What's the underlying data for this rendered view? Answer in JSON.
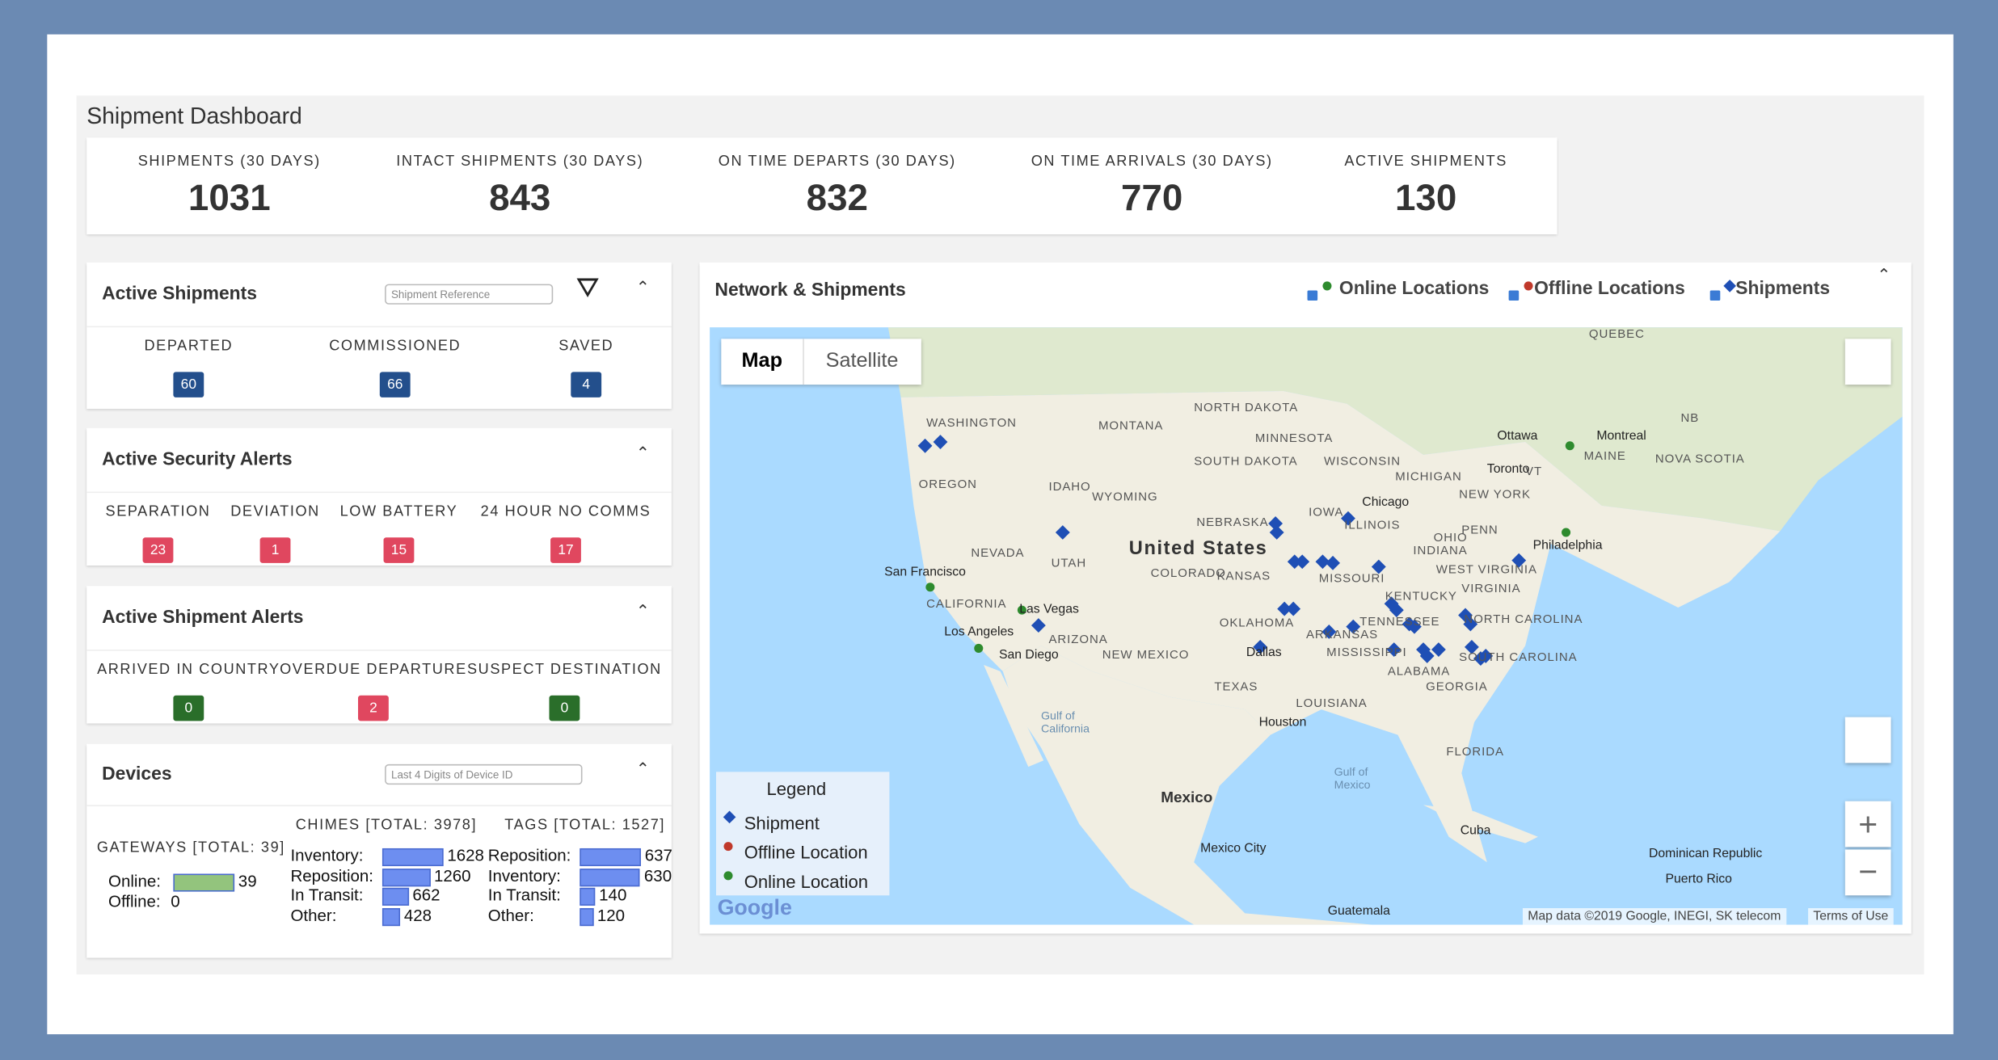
{
  "header": {
    "title": "Shipment Dashboard"
  },
  "kpis": [
    {
      "label": "SHIPMENTS (30 DAYS)",
      "value": 1031
    },
    {
      "label": "INTACT SHIPMENTS (30 DAYS)",
      "value": 843
    },
    {
      "label": "ON TIME DEPARTS (30 DAYS)",
      "value": 832
    },
    {
      "label": "ON TIME ARRIVALS (30 DAYS)",
      "value": 770
    },
    {
      "label": "ACTIVE SHIPMENTS",
      "value": 130
    }
  ],
  "active_shipments": {
    "title": "Active Shipments",
    "search_placeholder": "Shipment Reference",
    "stats": [
      {
        "label": "DEPARTED",
        "value": 60,
        "color": "#234f8c"
      },
      {
        "label": "COMMISSIONED",
        "value": 66,
        "color": "#234f8c"
      },
      {
        "label": "SAVED",
        "value": 4,
        "color": "#234f8c"
      }
    ]
  },
  "security_alerts": {
    "title": "Active Security Alerts",
    "stats": [
      {
        "label": "SEPARATION",
        "value": 23,
        "color": "#e0475f"
      },
      {
        "label": "DEVIATION",
        "value": 1,
        "color": "#e0475f"
      },
      {
        "label": "LOW BATTERY",
        "value": 15,
        "color": "#e0475f"
      },
      {
        "label": "24 HOUR NO COMMS",
        "value": 17,
        "color": "#e0475f"
      }
    ]
  },
  "shipment_alerts": {
    "title": "Active Shipment Alerts",
    "stats": [
      {
        "label": "ARRIVED IN COUNTRY",
        "value": 0,
        "color": "#2a6e2a"
      },
      {
        "label": "OVERDUE DEPARTURE",
        "value": 2,
        "color": "#e0475f"
      },
      {
        "label": "SUSPECT DESTINATION",
        "value": 0,
        "color": "#2a6e2a"
      }
    ]
  },
  "devices": {
    "title": "Devices",
    "search_placeholder": "Last 4 Digits of Device ID",
    "gateways": {
      "title": "GATEWAYS [TOTAL: 39]",
      "color": "#93c47d",
      "rows": [
        {
          "label": "Online:",
          "value": 39
        },
        {
          "label": "Offline:",
          "value": 0
        }
      ]
    },
    "chimes": {
      "title": "CHIMES [TOTAL: 3978]",
      "color": "#6d8ef0",
      "rows": [
        {
          "label": "Inventory:",
          "value": 1628
        },
        {
          "label": "Reposition:",
          "value": 1260
        },
        {
          "label": "In Transit:",
          "value": 662
        },
        {
          "label": "Other:",
          "value": 428
        }
      ]
    },
    "tags": {
      "title": "TAGS [TOTAL: 1527]",
      "color": "#6d8ef0",
      "rows": [
        {
          "label": "Reposition:",
          "value": 637
        },
        {
          "label": "Inventory:",
          "value": 630
        },
        {
          "label": "In Transit:",
          "value": 140
        },
        {
          "label": "Other:",
          "value": 120
        }
      ]
    }
  },
  "network": {
    "title": "Network & Shipments",
    "filters": [
      {
        "label": "Online Locations",
        "color": "#2e8b2e"
      },
      {
        "label": "Offline Locations",
        "color": "#c0392b"
      },
      {
        "label": "Shipments",
        "color": "#1f4fb5"
      }
    ],
    "map_buttons": [
      "Map",
      "Satellite"
    ],
    "legend": {
      "title": "Legend",
      "items": [
        {
          "label": "Shipment",
          "color": "#1f4fb5"
        },
        {
          "label": "Offline Location",
          "color": "#c0392b"
        },
        {
          "label": "Online Location",
          "color": "#2e8b2e"
        }
      ]
    },
    "google": "Google",
    "attribution": "Map data ©2019 Google, INEGI, SK telecom",
    "terms": "Terms of Use",
    "region_labels": [
      "WASHINGTON",
      "MONTANA",
      "NORTH DAKOTA",
      "MINNESOTA",
      "OREGON",
      "IDAHO",
      "SOUTH DAKOTA",
      "WYOMING",
      "WISCONSIN",
      "MICHIGAN",
      "NEBRASKA",
      "IOWA",
      "NEVADA",
      "UTAH",
      "COLORADO",
      "ILLINOIS",
      "INDIANA",
      "OHIO",
      "KANSAS",
      "MISSOURI",
      "CALIFORNIA",
      "ARIZONA",
      "OKLAHOMA",
      "ARKANSAS",
      "TENNESSEE",
      "KENTUCKY",
      "NEW MEXICO",
      "TEXAS",
      "MISSISSIPPI",
      "ALABAMA",
      "GEORGIA",
      "NORTH CAROLINA",
      "SOUTH CAROLINA",
      "FLORIDA",
      "LOUISIANA",
      "WEST VIRGINIA",
      "VIRGINIA",
      "PENN",
      "NEW YORK",
      "MAINE",
      "NOVA SCOTIA",
      "QUEBEC",
      "VT",
      "NB"
    ],
    "city_labels": [
      "Ottawa",
      "Montreal",
      "Toronto",
      "Chicago",
      "Philadelphia",
      "San Francisco",
      "Las Vegas",
      "Los Angeles",
      "San Diego",
      "Dallas",
      "Houston",
      "Mexico City",
      "Cuba",
      "Dominican Republic",
      "Puerto Rico",
      "Guatemala",
      "Gulf of Mexico",
      "Gulf of California"
    ],
    "country_labels": [
      "United States",
      "Mexico"
    ]
  }
}
